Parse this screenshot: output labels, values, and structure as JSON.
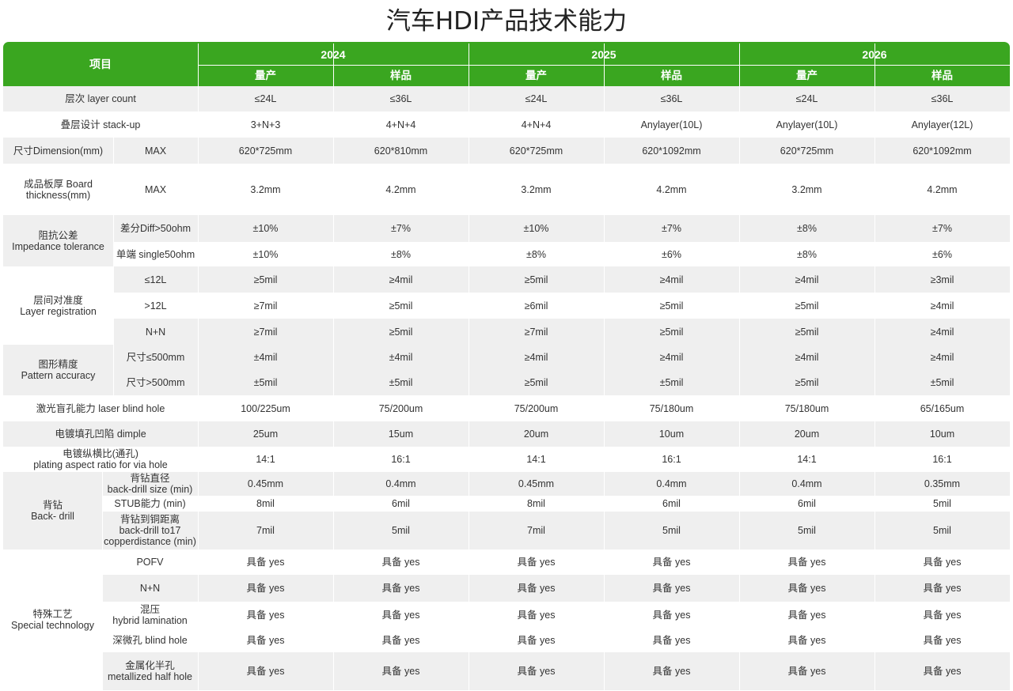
{
  "title": "汽车HDI产品技术能力",
  "header": {
    "item_label": "项目",
    "years": [
      "2024",
      "2025",
      "2026"
    ],
    "sub": [
      "量产",
      "样品"
    ]
  },
  "rows": {
    "layer_count": {
      "label": "层次  layer count",
      "values": [
        "≤24L",
        "≤36L",
        "≤24L",
        "≤36L",
        "≤24L",
        "≤36L"
      ]
    },
    "stackup": {
      "label": "叠层设计 stack-up",
      "values": [
        "3+N+3",
        "4+N+4",
        "4+N+4",
        "Anylayer(10L)",
        "Anylayer(10L)",
        "Anylayer(12L)"
      ]
    },
    "dimension": {
      "label": "尺寸Dimension(mm)",
      "sub": "MAX",
      "values": [
        "620*725mm",
        "620*810mm",
        "620*725mm",
        "620*1092mm",
        "620*725mm",
        "620*1092mm"
      ]
    },
    "thickness": {
      "label": "成品板厚 Board thickness(mm)",
      "sub": "MAX",
      "values": [
        "3.2mm",
        "4.2mm",
        "3.2mm",
        "4.2mm",
        "3.2mm",
        "4.2mm"
      ]
    },
    "impedance": {
      "label1": "阻抗公差",
      "label2": "Impedance tolerance",
      "subs": [
        {
          "label": "差分Diff>50ohm",
          "values": [
            "±10%",
            "±7%",
            "±10%",
            "±7%",
            "±8%",
            "±7%"
          ]
        },
        {
          "label": "单端 single50ohm",
          "values": [
            "±10%",
            "±8%",
            "±8%",
            "±6%",
            "±8%",
            "±6%"
          ]
        }
      ]
    },
    "registration": {
      "label1": "层间对准度",
      "label2": "Layer registration",
      "subs": [
        {
          "label": "≤12L",
          "values": [
            "≥5mil",
            "≥4mil",
            "≥5mil",
            "≥4mil",
            "≥4mil",
            "≥3mil"
          ]
        },
        {
          "label": ">12L",
          "values": [
            "≥7mil",
            "≥5mil",
            "≥6mil",
            "≥5mil",
            "≥5mil",
            "≥4mil"
          ]
        },
        {
          "label": "N+N",
          "values": [
            "≥7mil",
            "≥5mil",
            "≥7mil",
            "≥5mil",
            "≥5mil",
            "≥4mil"
          ]
        }
      ]
    },
    "pattern": {
      "label1": "图形精度",
      "label2": "Pattern accuracy",
      "subs": [
        {
          "label": "尺寸≤500mm",
          "values": [
            "±4mil",
            "±4mil",
            "≥4mil",
            "≥4mil",
            "≥4mil",
            "≥4mil"
          ]
        },
        {
          "label": "尺寸>500mm",
          "values": [
            "±5mil",
            "±5mil",
            "≥5mil",
            "±5mil",
            "≥5mil",
            "±5mil"
          ]
        }
      ]
    },
    "laser": {
      "label": "激光盲孔能力 laser blind hole",
      "values": [
        "100/225um",
        "75/200um",
        "75/200um",
        "75/180um",
        "75/180um",
        "65/165um"
      ]
    },
    "dimple": {
      "label": "电镀填孔凹陷 dimple",
      "values": [
        "25um",
        "15um",
        "20um",
        "10um",
        "20um",
        "10um"
      ]
    },
    "aspect": {
      "label1": "电镀纵横比(通孔)",
      "label2": "plating aspect ratio for via hole",
      "values": [
        "14:1",
        "16:1",
        "14:1",
        "16:1",
        "14:1",
        "16:1"
      ]
    },
    "backdrill": {
      "label1": "背钻",
      "label2": "Back- drill",
      "subs": [
        {
          "label1": "背钻直径",
          "label2": "back-drill size (min)",
          "label3": "",
          "values": [
            "0.45mm",
            "0.4mm",
            "0.45mm",
            "0.4mm",
            "0.4mm",
            "0.35mm"
          ]
        },
        {
          "label1": "STUB能力 (min)",
          "label2": "",
          "label3": "",
          "values": [
            "8mil",
            "6mil",
            "8mil",
            "6mil",
            "6mil",
            "5mil"
          ]
        },
        {
          "label1": "背钻到铜距离",
          "label2": "back-drill to17",
          "label3": "copperdistance (min)",
          "values": [
            "7mil",
            "5mil",
            "7mil",
            "5mil",
            "5mil",
            "5mil"
          ]
        }
      ]
    },
    "special": {
      "label1": "特殊工艺",
      "label2": "Special  technology",
      "subs": [
        {
          "label1": "POFV",
          "label2": "",
          "values": [
            "具备 yes",
            "具备 yes",
            "具备 yes",
            "具备 yes",
            "具备 yes",
            "具备 yes"
          ]
        },
        {
          "label1": "N+N",
          "label2": "",
          "values": [
            "具备 yes",
            "具备 yes",
            "具备 yes",
            "具备 yes",
            "具备 yes",
            "具备 yes"
          ]
        },
        {
          "label1": "混压",
          "label2": "hybrid lamination",
          "values": [
            "具备 yes",
            "具备 yes",
            "具备 yes",
            "具备 yes",
            "具备 yes",
            "具备 yes"
          ]
        },
        {
          "label1": "深微孔 blind hole",
          "label2": "",
          "values": [
            "具备 yes",
            "具备 yes",
            "具备 yes",
            "具备 yes",
            "具备 yes",
            "具备 yes"
          ]
        },
        {
          "label1": "金属化半孔",
          "label2": "metallized half hole",
          "values": [
            "具备 yes",
            "具备 yes",
            "具备 yes",
            "具备 yes",
            "具备 yes",
            "具备 yes"
          ]
        }
      ]
    }
  },
  "colors": {
    "header_green": "#3aa620",
    "band_gray": "#efefef",
    "band_white": "#ffffff"
  }
}
